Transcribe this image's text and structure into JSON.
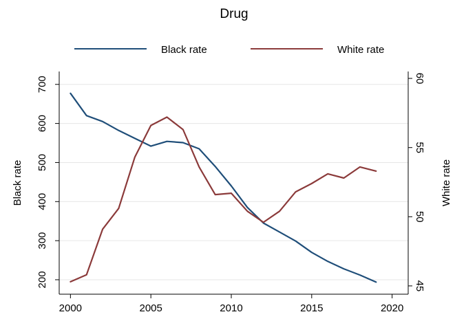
{
  "chart_data": {
    "type": "line",
    "title": "Drug",
    "x": [
      2000,
      2001,
      2002,
      2003,
      2004,
      2005,
      2006,
      2007,
      2008,
      2009,
      2010,
      2011,
      2012,
      2013,
      2014,
      2015,
      2016,
      2017,
      2018,
      2019
    ],
    "xlim": [
      1999.3,
      2021.0
    ],
    "xticks": [
      2000,
      2005,
      2010,
      2015,
      2020
    ],
    "series": [
      {
        "name": "Black rate",
        "axis": "left",
        "color": "#1f4e79",
        "values": [
          677,
          620,
          605,
          582,
          562,
          542,
          554,
          551,
          535,
          490,
          440,
          385,
          345,
          322,
          299,
          270,
          247,
          228,
          212,
          194
        ]
      },
      {
        "name": "White rate",
        "axis": "right",
        "color": "#8b3a3a",
        "values": [
          45.3,
          45.8,
          49.1,
          50.6,
          54.3,
          56.6,
          57.2,
          56.3,
          53.6,
          51.6,
          51.7,
          50.4,
          49.6,
          50.4,
          51.8,
          52.4,
          53.1,
          52.8,
          53.6,
          53.3
        ]
      }
    ],
    "y_left": {
      "label": "Black rate",
      "ticks": [
        200,
        300,
        400,
        500,
        600,
        700
      ],
      "lim": [
        163,
        733
      ]
    },
    "y_right": {
      "label": "White rate",
      "ticks": [
        45,
        50,
        55,
        60
      ],
      "lim": [
        44.4,
        60.5
      ]
    },
    "legend": {
      "placement": "top"
    },
    "grid": true
  }
}
